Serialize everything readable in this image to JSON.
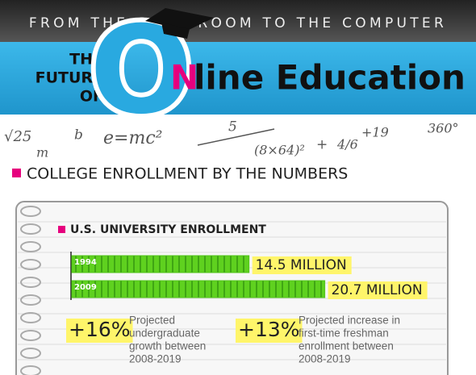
{
  "header": {
    "tagline": "FROM THE CLASSROOM TO THE COMPUTER",
    "title_lines": [
      "THE",
      "FUTURE",
      "OF"
    ],
    "big_o": "O",
    "n": "N",
    "rest": "line Education"
  },
  "doodles": [
    "√25",
    "m",
    "b",
    "e=mc²",
    "5",
    "(8×64)²",
    "+",
    "4/6",
    "+19",
    "360°"
  ],
  "section": {
    "title": "COLLEGE ENROLLMENT BY THE NUMBERS"
  },
  "enrollment": {
    "title": "U.S. UNIVERSITY ENROLLMENT",
    "years": [
      "1994",
      "2009"
    ],
    "values": [
      14.5,
      20.7
    ],
    "value_labels": [
      "14.5 MILLION",
      "20.7 MILLION"
    ],
    "color": "#52c41a"
  },
  "stats": [
    {
      "value": "+16%",
      "lines": [
        "Projected",
        "undergraduate",
        "growth between",
        "2008-2019"
      ]
    },
    {
      "value": "+13%",
      "lines": [
        "Projected increase in",
        "first-time freshman",
        "enrollment between",
        "2008-2019"
      ]
    }
  ]
}
